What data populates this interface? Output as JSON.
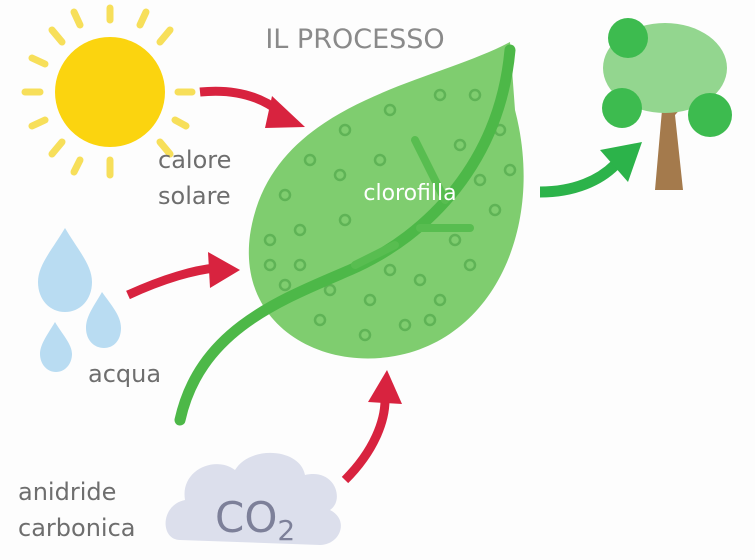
{
  "title": "IL PROCESSO",
  "inputs": {
    "sun": {
      "label": [
        "calore",
        "solare"
      ]
    },
    "water": {
      "label": "acqua"
    },
    "co2": {
      "label": [
        "anidride",
        "carbonica"
      ],
      "symbol": {
        "main": "CO",
        "sub": "2"
      }
    }
  },
  "leaf": {
    "label": "clorofilla"
  }
}
